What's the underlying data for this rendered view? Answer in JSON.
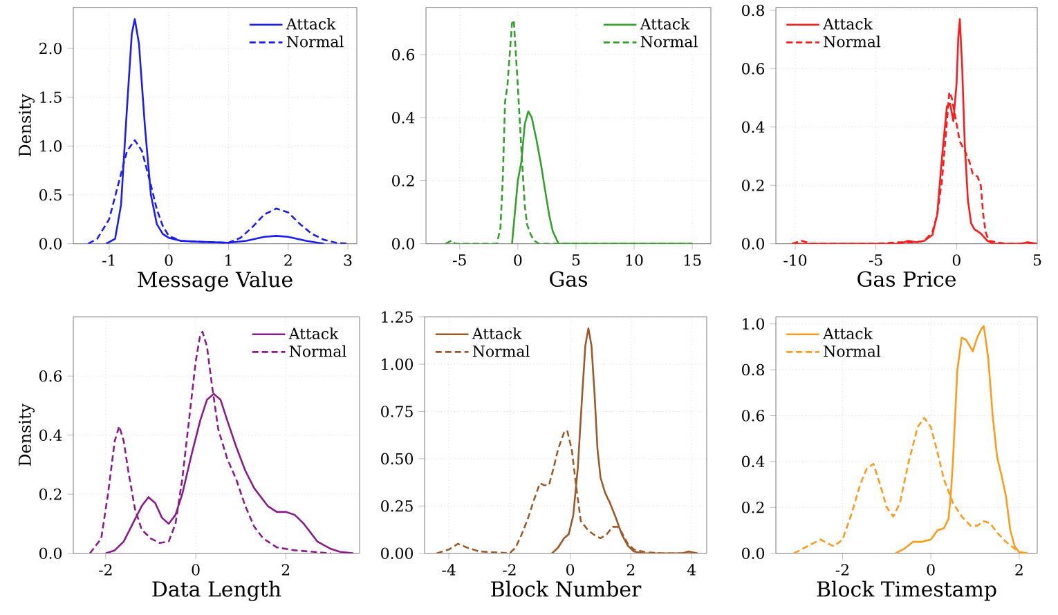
{
  "chart_data": [
    {
      "type": "line",
      "xlabel": "Message Value",
      "ylabel": "Density",
      "xlim": [
        -1.6,
        3.15
      ],
      "ylim": [
        0,
        2.42
      ],
      "xticks": [
        -1,
        0,
        1,
        2,
        3
      ],
      "yticks": [
        {
          "value": 0,
          "label": "0.0"
        },
        0.5,
        {
          "value": 1,
          "label": "1.0"
        },
        1.5,
        {
          "value": 2,
          "label": "2.0"
        }
      ],
      "grid": true,
      "legend": "top right",
      "series": [
        {
          "name": "Attack",
          "color": "#1a1aff",
          "line_style": "solid",
          "x": [
            -1.05,
            -0.9,
            -0.8,
            -0.7,
            -0.62,
            -0.57,
            -0.5,
            -0.4,
            -0.3,
            -0.2,
            -0.1,
            0,
            0.2,
            0.5,
            1.0,
            1.3,
            1.6,
            1.8,
            2.0,
            2.3,
            2.6
          ],
          "values": [
            0,
            0.05,
            0.4,
            1.4,
            2.15,
            2.3,
            2.05,
            1.2,
            0.5,
            0.2,
            0.1,
            0.06,
            0.03,
            0.02,
            0.01,
            0.03,
            0.07,
            0.08,
            0.07,
            0.03,
            0
          ]
        },
        {
          "name": "Normal",
          "color": "#1a1aff",
          "line_style": "dashed",
          "x": [
            -1.35,
            -1.2,
            -1.0,
            -0.85,
            -0.7,
            -0.57,
            -0.45,
            -0.3,
            -0.2,
            -0.1,
            0,
            0.2,
            0.5,
            1.0,
            1.2,
            1.4,
            1.6,
            1.8,
            2.0,
            2.2,
            2.4,
            2.6,
            2.8,
            3.0
          ],
          "values": [
            0,
            0.05,
            0.25,
            0.6,
            0.95,
            1.06,
            0.95,
            0.6,
            0.35,
            0.18,
            0.08,
            0.03,
            0.02,
            0.01,
            0.06,
            0.17,
            0.3,
            0.36,
            0.32,
            0.2,
            0.1,
            0.04,
            0.01,
            0
          ]
        }
      ]
    },
    {
      "type": "line",
      "xlabel": "Gas",
      "xlim": [
        -7.9,
        16.6
      ],
      "ylim": [
        0,
        0.75
      ],
      "xticks": [
        -5,
        0,
        5,
        10,
        15
      ],
      "yticks": [
        {
          "value": 0,
          "label": "0.0"
        },
        0.2,
        0.4,
        0.6
      ],
      "grid": true,
      "legend": "top right",
      "series": [
        {
          "name": "Attack",
          "color": "#33a02c",
          "line_style": "solid",
          "x": [
            -0.5,
            -0.2,
            0,
            0.3,
            0.6,
            0.9,
            1.2,
            1.6,
            2.0,
            2.3,
            2.7,
            3.0,
            3.5,
            15
          ],
          "values": [
            0,
            0.12,
            0.2,
            0.26,
            0.38,
            0.42,
            0.4,
            0.33,
            0.25,
            0.18,
            0.09,
            0.04,
            0,
            0
          ]
        },
        {
          "name": "Normal",
          "color": "#33a02c",
          "line_style": "dashed",
          "x": [
            -6.2,
            -5.7,
            -5.4,
            -1.8,
            -1.5,
            -1.3,
            -1.1,
            -0.9,
            -0.7,
            -0.5,
            -0.35,
            -0.2,
            0,
            0.3,
            0.6,
            0.8,
            1.1,
            1.4,
            1.8,
            15
          ],
          "values": [
            0,
            0.01,
            0,
            0,
            0.05,
            0.2,
            0.45,
            0.5,
            0.6,
            0.7,
            0.71,
            0.62,
            0.5,
            0.3,
            0.12,
            0.06,
            0.03,
            0.01,
            0,
            0
          ]
        }
      ]
    },
    {
      "type": "line",
      "xlabel": "Gas Price",
      "xlim": [
        -11.2,
        5.0
      ],
      "ylim": [
        0,
        0.81
      ],
      "xticks": [
        -10,
        -5,
        0,
        5
      ],
      "yticks": [
        {
          "value": 0,
          "label": "0.0"
        },
        0.2,
        0.4,
        0.6,
        0.8
      ],
      "grid": true,
      "legend": "top left",
      "series": [
        {
          "name": "Attack",
          "color": "#ff1a1a",
          "line_style": "solid",
          "x": [
            -10,
            -3.5,
            -3.0,
            -2.5,
            -2.0,
            -1.5,
            -1.2,
            -0.9,
            -0.6,
            -0.4,
            -0.2,
            0,
            0.1,
            0.2,
            0.35,
            0.5,
            0.7,
            0.9,
            1.1,
            1.5,
            1.9,
            2.3,
            4.0,
            4.4,
            5.0
          ],
          "values": [
            0,
            0,
            0.01,
            0.005,
            0.01,
            0.03,
            0.1,
            0.3,
            0.47,
            0.48,
            0.42,
            0.55,
            0.7,
            0.77,
            0.6,
            0.35,
            0.15,
            0.07,
            0.05,
            0.035,
            0.01,
            0,
            0,
            0.005,
            0
          ]
        },
        {
          "name": "Normal",
          "color": "#ff1a1a",
          "line_style": "dashed",
          "x": [
            -10.2,
            -9.6,
            -9.0,
            -5.0,
            -3.5,
            -2.5,
            -2.0,
            -1.5,
            -1.2,
            -0.9,
            -0.6,
            -0.45,
            -0.3,
            -0.1,
            0.2,
            0.5,
            0.8,
            1.0,
            1.3,
            1.5,
            1.65,
            1.8,
            2.0,
            2.5,
            3.0,
            5.0
          ],
          "values": [
            0,
            0.01,
            0,
            0,
            0.005,
            0.005,
            0.01,
            0.04,
            0.1,
            0.22,
            0.42,
            0.52,
            0.5,
            0.44,
            0.35,
            0.32,
            0.28,
            0.24,
            0.23,
            0.2,
            0.1,
            0.04,
            0.01,
            0.005,
            0,
            0
          ]
        }
      ]
    },
    {
      "type": "line",
      "xlabel": "Data Length",
      "ylabel": "Density",
      "xlim": [
        -2.72,
        3.64
      ],
      "ylim": [
        0,
        0.8
      ],
      "xticks": [
        -2,
        0,
        2
      ],
      "yticks": [
        {
          "value": 0,
          "label": "0.0"
        },
        0.2,
        0.4,
        0.6
      ],
      "grid": true,
      "legend": "top right",
      "series": [
        {
          "name": "Attack",
          "color": "#8b1a8b",
          "line_style": "solid",
          "x": [
            -2.0,
            -1.8,
            -1.6,
            -1.4,
            -1.2,
            -1.05,
            -0.9,
            -0.75,
            -0.6,
            -0.45,
            -0.3,
            -0.1,
            0.1,
            0.25,
            0.4,
            0.55,
            0.7,
            0.9,
            1.1,
            1.3,
            1.6,
            1.8,
            2.0,
            2.2,
            2.4,
            2.7,
            3.0,
            3.2,
            3.5
          ],
          "values": [
            0,
            0.01,
            0.04,
            0.1,
            0.16,
            0.19,
            0.17,
            0.12,
            0.1,
            0.13,
            0.2,
            0.33,
            0.45,
            0.52,
            0.54,
            0.52,
            0.45,
            0.36,
            0.28,
            0.22,
            0.16,
            0.14,
            0.14,
            0.13,
            0.1,
            0.04,
            0.015,
            0.005,
            0
          ]
        },
        {
          "name": "Normal",
          "color": "#8b1a8b",
          "line_style": "dashed",
          "x": [
            -2.35,
            -2.1,
            -1.95,
            -1.8,
            -1.7,
            -1.6,
            -1.5,
            -1.35,
            -1.2,
            -1.0,
            -0.8,
            -0.6,
            -0.45,
            -0.3,
            -0.15,
            0,
            0.1,
            0.15,
            0.25,
            0.35,
            0.5,
            0.7,
            0.9,
            1.1,
            1.3,
            1.5,
            1.8,
            2.2,
            2.6,
            3.0
          ],
          "values": [
            0,
            0.05,
            0.2,
            0.38,
            0.43,
            0.38,
            0.28,
            0.15,
            0.08,
            0.05,
            0.035,
            0.04,
            0.1,
            0.25,
            0.45,
            0.65,
            0.74,
            0.75,
            0.7,
            0.58,
            0.42,
            0.32,
            0.25,
            0.16,
            0.09,
            0.05,
            0.02,
            0.01,
            0.005,
            0
          ]
        }
      ]
    },
    {
      "type": "line",
      "xlabel": "Block Number",
      "xlim": [
        -4.8,
        4.5
      ],
      "ylim": [
        0,
        1.25
      ],
      "xticks": [
        -4,
        -2,
        0,
        2,
        4
      ],
      "yticks": [
        {
          "value": 0,
          "label": "0.00"
        },
        0.25,
        {
          "value": 0.5,
          "label": "0.50"
        },
        0.75,
        {
          "value": 1,
          "label": "1.00"
        },
        1.25
      ],
      "grid": true,
      "legend": "top left",
      "series": [
        {
          "name": "Attack",
          "color": "#9c5a2a",
          "line_style": "solid",
          "x": [
            -0.6,
            -0.4,
            -0.2,
            -0.05,
            0.1,
            0.25,
            0.4,
            0.5,
            0.6,
            0.7,
            0.8,
            0.9,
            1.0,
            1.15,
            1.3,
            1.5,
            1.7,
            1.9,
            2.1,
            2.4,
            3.7,
            3.9,
            4.2
          ],
          "values": [
            0,
            0.03,
            0.08,
            0.1,
            0.2,
            0.45,
            0.85,
            1.1,
            1.19,
            1.1,
            0.85,
            0.55,
            0.4,
            0.32,
            0.27,
            0.19,
            0.1,
            0.04,
            0.01,
            0,
            0,
            0.01,
            0
          ]
        },
        {
          "name": "Normal",
          "color": "#9c5a2a",
          "line_style": "dashed",
          "x": [
            -4.4,
            -4.0,
            -3.7,
            -3.4,
            -3.0,
            -2.5,
            -2.0,
            -1.8,
            -1.6,
            -1.4,
            -1.2,
            -1.0,
            -0.85,
            -0.7,
            -0.55,
            -0.4,
            -0.2,
            -0.1,
            0.05,
            0.2,
            0.35,
            0.6,
            0.85,
            1.0,
            1.2,
            1.4,
            1.55,
            1.7,
            1.9,
            2.1,
            2.5,
            3.0,
            4.0
          ],
          "values": [
            0,
            0.02,
            0.05,
            0.03,
            0.01,
            0.005,
            0,
            0.03,
            0.1,
            0.18,
            0.28,
            0.37,
            0.36,
            0.36,
            0.45,
            0.55,
            0.64,
            0.65,
            0.55,
            0.35,
            0.17,
            0.12,
            0.09,
            0.08,
            0.1,
            0.14,
            0.14,
            0.11,
            0.05,
            0.02,
            0.005,
            0,
            0
          ]
        }
      ]
    },
    {
      "type": "line",
      "xlabel": "Block Timestamp",
      "xlim": [
        -3.51,
        2.41
      ],
      "ylim": [
        0,
        1.03
      ],
      "xticks": [
        -2,
        0,
        2
      ],
      "yticks": [
        {
          "value": 0,
          "label": "0.0"
        },
        0.2,
        0.4,
        0.6,
        0.8,
        {
          "value": 1,
          "label": "1.0"
        }
      ],
      "grid": true,
      "legend": "top left",
      "series": [
        {
          "name": "Attack",
          "color": "#ff9a1a",
          "line_style": "solid",
          "x": [
            -0.8,
            -0.6,
            -0.4,
            -0.2,
            0,
            0.15,
            0.3,
            0.4,
            0.45,
            0.5,
            0.55,
            0.6,
            0.7,
            0.8,
            0.95,
            1.05,
            1.15,
            1.2,
            1.3,
            1.4,
            1.5,
            1.6,
            1.7,
            1.8,
            1.9,
            2.0,
            2.2
          ],
          "values": [
            0,
            0.02,
            0.05,
            0.05,
            0.06,
            0.1,
            0.11,
            0.15,
            0.25,
            0.4,
            0.6,
            0.8,
            0.94,
            0.93,
            0.88,
            0.94,
            0.98,
            0.99,
            0.85,
            0.6,
            0.42,
            0.34,
            0.25,
            0.1,
            0.03,
            0.005,
            0
          ]
        },
        {
          "name": "Normal",
          "color": "#ff9a1a",
          "line_style": "dashed",
          "x": [
            -3.1,
            -2.8,
            -2.5,
            -2.2,
            -2.0,
            -1.8,
            -1.6,
            -1.45,
            -1.3,
            -1.15,
            -1.0,
            -0.85,
            -0.7,
            -0.5,
            -0.3,
            -0.15,
            0,
            0.15,
            0.3,
            0.5,
            0.7,
            0.9,
            1.05,
            1.2,
            1.35,
            1.5,
            1.7,
            1.9,
            2.0,
            2.2
          ],
          "values": [
            0,
            0.03,
            0.06,
            0.03,
            0.06,
            0.17,
            0.3,
            0.37,
            0.39,
            0.3,
            0.2,
            0.16,
            0.22,
            0.4,
            0.55,
            0.59,
            0.55,
            0.44,
            0.32,
            0.22,
            0.16,
            0.12,
            0.12,
            0.14,
            0.13,
            0.09,
            0.05,
            0.02,
            0.005,
            0
          ]
        }
      ]
    }
  ]
}
